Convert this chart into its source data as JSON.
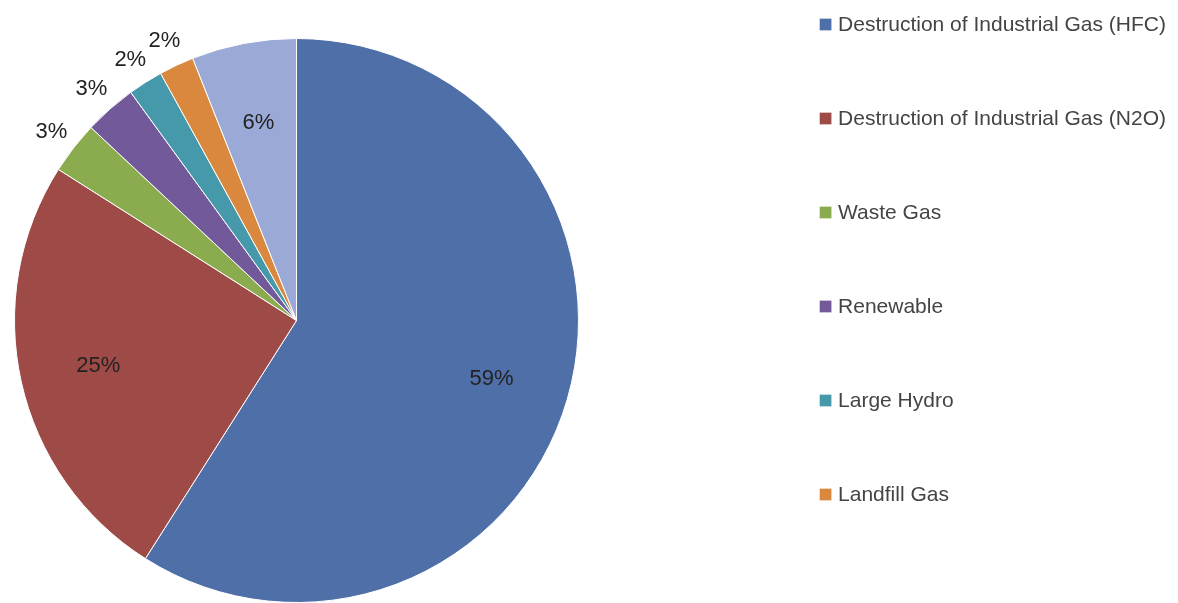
{
  "chart_data": {
    "type": "pie",
    "categories": [
      "Destruction of Industrial Gas (HFC)",
      "Destruction of Industrial Gas (N2O)",
      "Waste Gas",
      "Renewable",
      "Large Hydro",
      "Landfill Gas",
      null
    ],
    "values": [
      59,
      25,
      3,
      3,
      2,
      2,
      6
    ],
    "colors": [
      "#4f6fa8",
      "#9e4a47",
      "#8aab4e",
      "#71599a",
      "#4698ab",
      "#d9883e",
      "#9aa9d6"
    ],
    "value_labels": [
      "59%",
      "25%",
      "3%",
      "3%",
      "2%",
      "2%",
      "6%"
    ],
    "legend": "right"
  }
}
